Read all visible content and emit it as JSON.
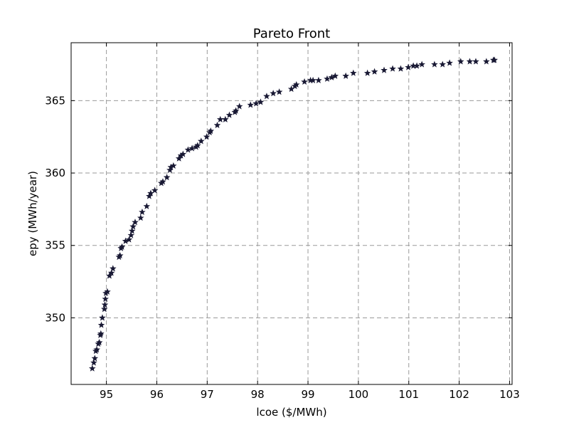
{
  "chart_data": {
    "type": "scatter",
    "title": "Pareto Front",
    "xlabel": "lcoe ($/MWh)",
    "ylabel": "epy (MWh/year)",
    "xlim": [
      94.3,
      103.05
    ],
    "ylim": [
      345.4,
      369.0
    ],
    "x_ticks": [
      95,
      96,
      97,
      98,
      99,
      100,
      101,
      102,
      103
    ],
    "y_ticks": [
      350,
      355,
      360,
      365
    ],
    "grid": true,
    "marker": "star",
    "marker_color": "#191934",
    "grid_color": "#9a9a9a",
    "points": [
      [
        94.72,
        346.5
      ],
      [
        94.75,
        346.9
      ],
      [
        94.77,
        347.2
      ],
      [
        94.79,
        347.7
      ],
      [
        94.81,
        347.8
      ],
      [
        94.84,
        348.2
      ],
      [
        94.86,
        348.3
      ],
      [
        94.88,
        348.8
      ],
      [
        94.89,
        348.9
      ],
      [
        94.9,
        349.5
      ],
      [
        94.92,
        350.0
      ],
      [
        94.96,
        350.6
      ],
      [
        94.97,
        350.9
      ],
      [
        94.98,
        351.3
      ],
      [
        94.99,
        351.7
      ],
      [
        95.02,
        351.8
      ],
      [
        95.06,
        352.9
      ],
      [
        95.1,
        353.1
      ],
      [
        95.13,
        353.4
      ],
      [
        95.25,
        354.2
      ],
      [
        95.27,
        354.3
      ],
      [
        95.29,
        354.8
      ],
      [
        95.31,
        354.9
      ],
      [
        95.38,
        355.3
      ],
      [
        95.45,
        355.4
      ],
      [
        95.49,
        355.7
      ],
      [
        95.51,
        356.0
      ],
      [
        95.53,
        356.3
      ],
      [
        95.57,
        356.6
      ],
      [
        95.68,
        356.9
      ],
      [
        95.71,
        357.3
      ],
      [
        95.8,
        357.7
      ],
      [
        95.85,
        358.4
      ],
      [
        95.88,
        358.6
      ],
      [
        95.96,
        358.8
      ],
      [
        96.09,
        359.3
      ],
      [
        96.12,
        359.4
      ],
      [
        96.2,
        359.7
      ],
      [
        96.26,
        360.2
      ],
      [
        96.28,
        360.4
      ],
      [
        96.33,
        360.5
      ],
      [
        96.44,
        361.0
      ],
      [
        96.48,
        361.2
      ],
      [
        96.52,
        361.3
      ],
      [
        96.62,
        361.6
      ],
      [
        96.7,
        361.7
      ],
      [
        96.78,
        361.8
      ],
      [
        96.81,
        361.9
      ],
      [
        96.88,
        362.2
      ],
      [
        96.99,
        362.5
      ],
      [
        97.05,
        362.8
      ],
      [
        97.07,
        362.9
      ],
      [
        97.2,
        363.3
      ],
      [
        97.26,
        363.7
      ],
      [
        97.36,
        363.7
      ],
      [
        97.44,
        364.0
      ],
      [
        97.55,
        364.2
      ],
      [
        97.57,
        364.3
      ],
      [
        97.64,
        364.6
      ],
      [
        97.86,
        364.7
      ],
      [
        97.97,
        364.8
      ],
      [
        98.06,
        364.9
      ],
      [
        98.18,
        365.3
      ],
      [
        98.31,
        365.5
      ],
      [
        98.43,
        365.6
      ],
      [
        98.67,
        365.8
      ],
      [
        98.74,
        366.0
      ],
      [
        98.77,
        366.1
      ],
      [
        98.93,
        366.3
      ],
      [
        99.05,
        366.4
      ],
      [
        99.1,
        366.4
      ],
      [
        99.21,
        366.4
      ],
      [
        99.38,
        366.5
      ],
      [
        99.47,
        366.6
      ],
      [
        99.54,
        366.7
      ],
      [
        99.75,
        366.7
      ],
      [
        99.9,
        366.9
      ],
      [
        100.18,
        366.9
      ],
      [
        100.32,
        367.0
      ],
      [
        100.51,
        367.1
      ],
      [
        100.68,
        367.2
      ],
      [
        100.84,
        367.2
      ],
      [
        100.99,
        367.3
      ],
      [
        101.09,
        367.4
      ],
      [
        101.16,
        367.4
      ],
      [
        101.26,
        367.5
      ],
      [
        101.51,
        367.5
      ],
      [
        101.67,
        367.5
      ],
      [
        101.81,
        367.6
      ],
      [
        102.03,
        367.7
      ],
      [
        102.21,
        367.7
      ],
      [
        102.33,
        367.7
      ],
      [
        102.54,
        367.7
      ],
      [
        102.68,
        367.8
      ],
      [
        102.7,
        367.8
      ]
    ]
  }
}
